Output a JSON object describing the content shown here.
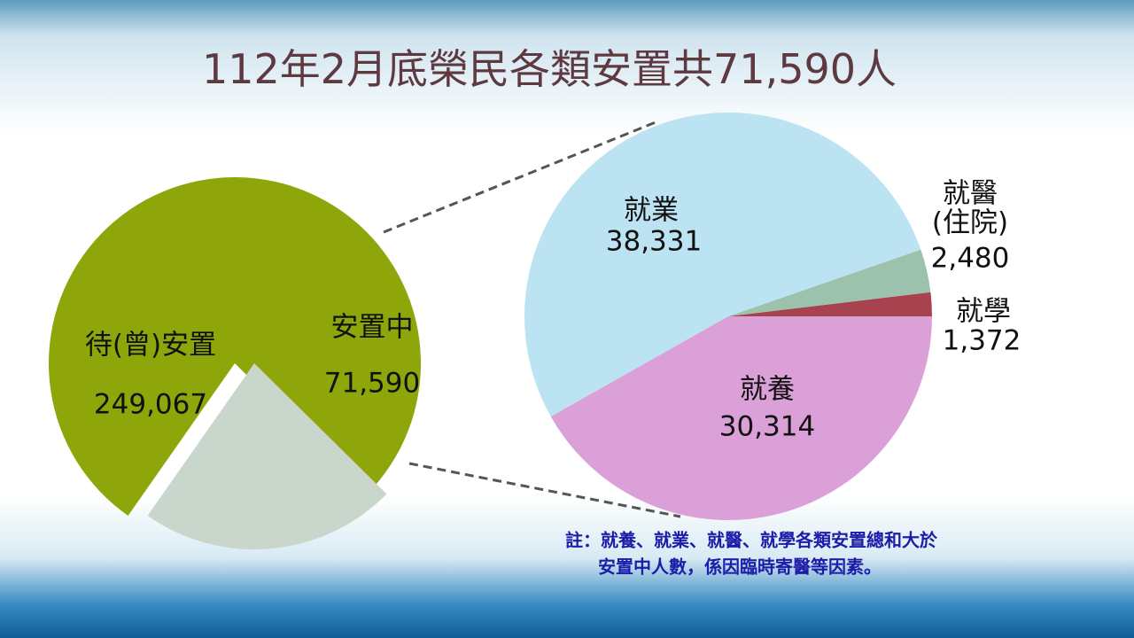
{
  "title": "112年2月底榮民各類安置共71,590人",
  "note": [
    "註：就養、就業、就醫、就學各類安置總和大於",
    "安置中人數，係因臨時寄醫等因素。"
  ],
  "chart_data": [
    {
      "type": "pie",
      "categories": [
        "待(曾)安置",
        "安置中"
      ],
      "values": [
        249067,
        71590
      ],
      "value_labels": [
        "249,067",
        "71,590"
      ],
      "colors": [
        "#8fa60a",
        "#c9d6cc"
      ]
    },
    {
      "type": "pie",
      "categories": [
        "就學",
        "就醫\n(住院)",
        "就業",
        "就養"
      ],
      "values": [
        1372,
        2480,
        38331,
        30314
      ],
      "value_labels": [
        "1,372",
        "2,480",
        "38,331",
        "30,314"
      ],
      "colors": [
        "#a8424f",
        "#9cc2ae",
        "#bce3f2",
        "#dca0d8"
      ]
    }
  ]
}
